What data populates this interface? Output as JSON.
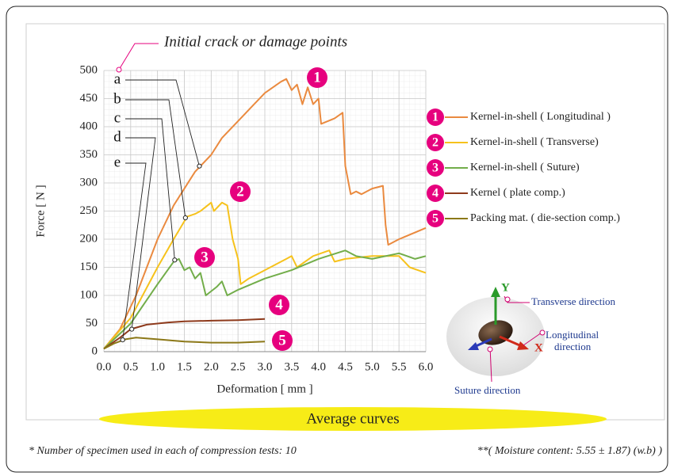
{
  "chart_data": {
    "type": "line",
    "xlabel": "Deformation [ mm ]",
    "ylabel": "Force [ N ]",
    "xlim": [
      0,
      6
    ],
    "ylim": [
      0,
      500
    ],
    "xticks": [
      {
        "value": 0,
        "label": "0.0"
      },
      0.5,
      {
        "value": 1,
        "label": "1.0"
      },
      1.5,
      {
        "value": 2,
        "label": "2.0"
      },
      2.5,
      {
        "value": 3,
        "label": "3.0"
      },
      3.5,
      {
        "value": 4,
        "label": "4.0"
      },
      4.5,
      {
        "value": 5,
        "label": "5.0"
      },
      5.5,
      {
        "value": 6,
        "label": "6.0"
      }
    ],
    "yticks": [
      0,
      50,
      100,
      150,
      200,
      250,
      300,
      350,
      400,
      450,
      500
    ],
    "grid": true,
    "series": [
      {
        "label": "1",
        "name": "Kernel-in-shell ( Longitudinal )",
        "color": "#ea8a3f",
        "x": [
          0,
          0.3,
          0.6,
          1.0,
          1.3,
          1.7,
          1.8,
          2.0,
          2.2,
          2.5,
          2.8,
          3.0,
          3.3,
          3.4,
          3.5,
          3.6,
          3.7,
          3.8,
          3.9,
          4.0,
          4.05,
          4.3,
          4.45,
          4.5,
          4.6,
          4.7,
          4.8,
          5.0,
          5.2,
          5.25,
          5.3,
          5.5,
          6.0
        ],
        "values": [
          5,
          40,
          100,
          200,
          260,
          320,
          330,
          350,
          380,
          410,
          440,
          460,
          480,
          485,
          465,
          475,
          440,
          470,
          440,
          450,
          405,
          415,
          425,
          330,
          280,
          285,
          280,
          290,
          295,
          225,
          190,
          200,
          220
        ]
      },
      {
        "label": "2",
        "name": "Kernel-in-shell ( Transverse)",
        "color": "#f6c21c",
        "x": [
          0,
          0.5,
          1.0,
          1.3,
          1.55,
          1.7,
          1.8,
          2.0,
          2.05,
          2.2,
          2.3,
          2.4,
          2.5,
          2.55,
          2.7,
          3.0,
          3.4,
          3.5,
          3.6,
          3.9,
          4.2,
          4.3,
          4.5,
          5.0,
          5.5,
          5.7,
          6.0
        ],
        "values": [
          5,
          60,
          150,
          200,
          240,
          245,
          250,
          265,
          250,
          265,
          260,
          200,
          165,
          120,
          130,
          145,
          165,
          170,
          150,
          170,
          180,
          160,
          165,
          170,
          170,
          150,
          140
        ]
      },
      {
        "label": "3",
        "name": "Kernel-in-shell ( Suture)",
        "color": "#72ad4a",
        "x": [
          0,
          0.5,
          1.0,
          1.3,
          1.4,
          1.5,
          1.6,
          1.7,
          1.8,
          1.9,
          2.1,
          2.2,
          2.3,
          2.5,
          3.0,
          3.5,
          4.0,
          4.5,
          4.7,
          5.0,
          5.5,
          5.8,
          6.0
        ],
        "values": [
          5,
          50,
          120,
          160,
          165,
          145,
          150,
          130,
          140,
          100,
          115,
          125,
          100,
          110,
          130,
          145,
          165,
          180,
          170,
          165,
          175,
          165,
          170
        ]
      },
      {
        "label": "4",
        "name": "Kernel ( plate comp.)",
        "color": "#8e3a1c",
        "x": [
          0,
          0.3,
          0.5,
          0.8,
          1.2,
          1.5,
          2.0,
          2.5,
          3.0
        ],
        "values": [
          5,
          25,
          40,
          48,
          52,
          54,
          55,
          56,
          58
        ]
      },
      {
        "label": "5",
        "name": "Packing mat. ( die-section comp.)",
        "color": "#8c7818",
        "x": [
          0,
          0.2,
          0.4,
          0.6,
          1.0,
          1.5,
          2.0,
          2.5,
          3.0
        ],
        "values": [
          5,
          15,
          22,
          25,
          22,
          18,
          16,
          16,
          18
        ]
      }
    ],
    "annotations": {
      "title": "Initial crack or damage points",
      "damage_points": [
        {
          "label": "a",
          "x": 1.78,
          "y": 330
        },
        {
          "label": "b",
          "x": 1.52,
          "y": 238
        },
        {
          "label": "c",
          "x": 1.32,
          "y": 163
        },
        {
          "label": "d",
          "x": 0.52,
          "y": 40
        },
        {
          "label": "e",
          "x": 0.35,
          "y": 21
        }
      ]
    },
    "orientation": {
      "y_axis": "Y",
      "x_axis": "X",
      "transverse": "Transverse direction",
      "longitudinal": [
        "Longitudinal",
        "direction"
      ],
      "suture": "Suture  direction"
    }
  },
  "banner": "Average curves",
  "footnotes": [
    "* Number of specimen used in each of compression tests: 10",
    "**( Moisture content: 5.55 ± 1.87) (w.b) )"
  ]
}
